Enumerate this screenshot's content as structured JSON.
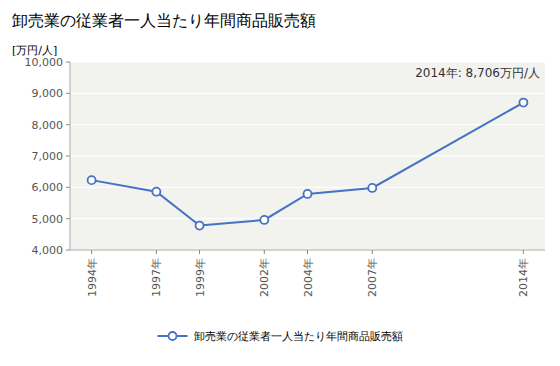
{
  "chart_data": {
    "type": "line",
    "title": "卸売業の従業者一人当たり年間商品販売額",
    "y_label": "[万円/人]",
    "annotation": "2014年: 8,706万円/人",
    "x": [
      1994,
      1997,
      1999,
      2002,
      2004,
      2007,
      2014
    ],
    "series": [
      {
        "name": "卸売業の従業者一人当たり年間商品販売額",
        "color": "#4472C4",
        "marker": "circle",
        "values": [
          6230,
          5860,
          4780,
          4960,
          5790,
          5980,
          8706
        ]
      }
    ],
    "xlim": [
      1993,
      2015
    ],
    "xticks": [
      {
        "value": 1994,
        "label": "1994年"
      },
      {
        "value": 1997,
        "label": "1997年"
      },
      {
        "value": 1999,
        "label": "1999年"
      },
      {
        "value": 2002,
        "label": "2002年"
      },
      {
        "value": 2004,
        "label": "2004年"
      },
      {
        "value": 2007,
        "label": "2007年"
      },
      {
        "value": 2014,
        "label": "2014年"
      }
    ],
    "ylim": [
      4000,
      10000
    ],
    "yticks": [
      {
        "value": 4000,
        "label": "4,000"
      },
      {
        "value": 5000,
        "label": "5,000"
      },
      {
        "value": 6000,
        "label": "6,000"
      },
      {
        "value": 7000,
        "label": "7,000"
      },
      {
        "value": 8000,
        "label": "8,000"
      },
      {
        "value": 9000,
        "label": "9,000"
      },
      {
        "value": 10000,
        "label": "10,000"
      }
    ],
    "grid": true,
    "legend": "bottom"
  }
}
